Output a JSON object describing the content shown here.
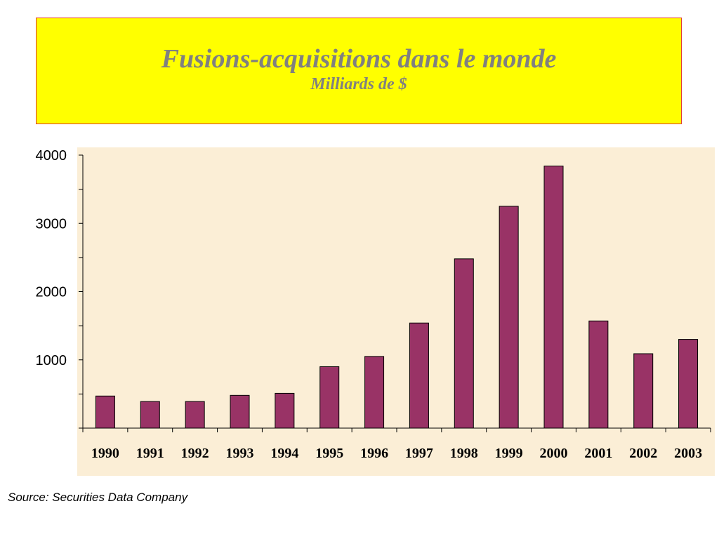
{
  "header": {
    "title": "Fusions-acquisitions dans le monde",
    "subtitle": "Milliards de $"
  },
  "source": "Source: Securities Data Company",
  "colors": {
    "title_background": "#ffff00",
    "title_border": "#e03a2a",
    "title_text": "#808080",
    "plot_background": "#fbeed6",
    "bar_fill": "#993366"
  },
  "chart_data": {
    "type": "bar",
    "title": "Fusions-acquisitions dans le monde",
    "subtitle": "Milliards de $",
    "categories": [
      "1990",
      "1991",
      "1992",
      "1993",
      "1994",
      "1995",
      "1996",
      "1997",
      "1998",
      "1999",
      "2000",
      "2001",
      "2002",
      "2003"
    ],
    "values": [
      470,
      390,
      390,
      480,
      510,
      900,
      1050,
      1540,
      2480,
      3250,
      3840,
      1570,
      1090,
      1300
    ],
    "ytick_labels": [
      "1000",
      "2000",
      "3000",
      "4000"
    ],
    "ylim": [
      0,
      4000
    ],
    "grid": false,
    "legend": "none"
  }
}
